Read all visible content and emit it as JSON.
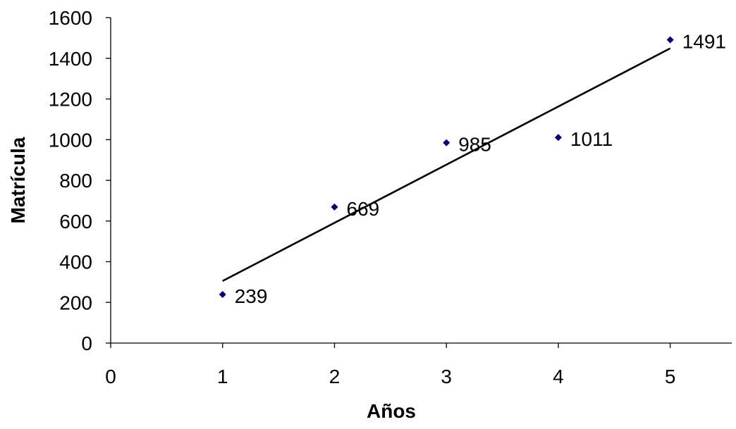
{
  "chart_data": {
    "type": "scatter",
    "title": "",
    "xlabel": "Años",
    "ylabel": "Matrícula",
    "xlim": [
      0,
      5.55
    ],
    "ylim": [
      0,
      1600
    ],
    "x_ticks": [
      0,
      1,
      2,
      3,
      4,
      5
    ],
    "y_ticks": [
      0,
      200,
      400,
      600,
      800,
      1000,
      1200,
      1400,
      1600
    ],
    "grid": false,
    "legend": "none",
    "series": [
      {
        "x": [
          1,
          2,
          3,
          4,
          5
        ],
        "y": [
          239,
          669,
          985,
          1011,
          1491
        ],
        "data_labels": [
          "239",
          "669",
          "985",
          "1011",
          "1491"
        ],
        "marker": "diamond",
        "color": "#000080"
      }
    ],
    "trendline": {
      "type": "linear",
      "x": [
        1,
        5
      ],
      "y": [
        305.2,
        1448.8
      ],
      "color": "#000000"
    }
  }
}
